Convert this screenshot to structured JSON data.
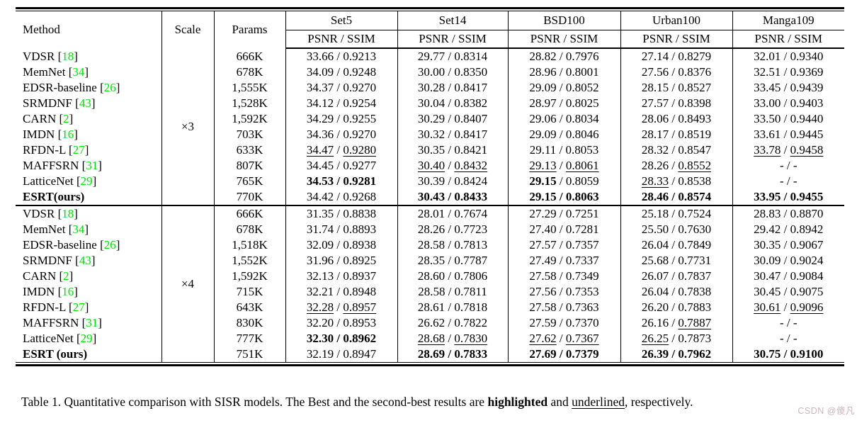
{
  "table": {
    "header": {
      "method": "Method",
      "scale": "Scale",
      "params": "Params",
      "datasets": [
        "Set5",
        "Set14",
        "BSD100",
        "Urban100",
        "Manga109"
      ],
      "subheader": "PSNR / SSIM"
    },
    "accent_green": "#00E400",
    "groups": [
      {
        "scale": "×3",
        "rows": [
          {
            "method": "VDSR",
            "cite": "18",
            "bold": false,
            "params": "666K",
            "cells": [
              [
                "33.66",
                "n",
                "0.9213",
                "n"
              ],
              [
                "29.77",
                "n",
                "0.8314",
                "n"
              ],
              [
                "28.82",
                "n",
                "0.7976",
                "n"
              ],
              [
                "27.14",
                "n",
                "0.8279",
                "n"
              ],
              [
                "32.01",
                "n",
                "0.9340",
                "n"
              ]
            ]
          },
          {
            "method": "MemNet",
            "cite": "34",
            "bold": false,
            "params": "678K",
            "cells": [
              [
                "34.09",
                "n",
                "0.9248",
                "n"
              ],
              [
                "30.00",
                "n",
                "0.8350",
                "n"
              ],
              [
                "28.96",
                "n",
                "0.8001",
                "n"
              ],
              [
                "27.56",
                "n",
                "0.8376",
                "n"
              ],
              [
                "32.51",
                "n",
                "0.9369",
                "n"
              ]
            ]
          },
          {
            "method": "EDSR-baseline",
            "cite": "26",
            "bold": false,
            "params": "1,555K",
            "cells": [
              [
                "34.37",
                "n",
                "0.9270",
                "n"
              ],
              [
                "30.28",
                "n",
                "0.8417",
                "n"
              ],
              [
                "29.09",
                "n",
                "0.8052",
                "n"
              ],
              [
                "28.15",
                "n",
                "0.8527",
                "n"
              ],
              [
                "33.45",
                "n",
                "0.9439",
                "n"
              ]
            ]
          },
          {
            "method": "SRMDNF",
            "cite": "43",
            "bold": false,
            "params": "1,528K",
            "cells": [
              [
                "34.12",
                "n",
                "0.9254",
                "n"
              ],
              [
                "30.04",
                "n",
                "0.8382",
                "n"
              ],
              [
                "28.97",
                "n",
                "0.8025",
                "n"
              ],
              [
                "27.57",
                "n",
                "0.8398",
                "n"
              ],
              [
                "33.00",
                "n",
                "0.9403",
                "n"
              ]
            ]
          },
          {
            "method": "CARN",
            "cite": "2",
            "bold": false,
            "params": "1,592K",
            "cells": [
              [
                "34.29",
                "n",
                "0.9255",
                "n"
              ],
              [
                "30.29",
                "n",
                "0.8407",
                "n"
              ],
              [
                "29.06",
                "n",
                "0.8034",
                "n"
              ],
              [
                "28.06",
                "n",
                "0.8493",
                "n"
              ],
              [
                "33.50",
                "n",
                "0.9440",
                "n"
              ]
            ]
          },
          {
            "method": "IMDN",
            "cite": "16",
            "bold": false,
            "params": "703K",
            "cells": [
              [
                "34.36",
                "n",
                "0.9270",
                "n"
              ],
              [
                "30.32",
                "n",
                "0.8417",
                "n"
              ],
              [
                "29.09",
                "n",
                "0.8046",
                "n"
              ],
              [
                "28.17",
                "n",
                "0.8519",
                "n"
              ],
              [
                "33.61",
                "n",
                "0.9445",
                "n"
              ]
            ]
          },
          {
            "method": "RFDN-L",
            "cite": "27",
            "bold": false,
            "params": "633K",
            "cells": [
              [
                "34.47",
                "u",
                "0.9280",
                "u"
              ],
              [
                "30.35",
                "n",
                "0.8421",
                "n"
              ],
              [
                "29.11",
                "n",
                "0.8053",
                "n"
              ],
              [
                "28.32",
                "n",
                "0.8547",
                "n"
              ],
              [
                "33.78",
                "u",
                "0.9458",
                "u"
              ]
            ]
          },
          {
            "method": "MAFFSRN",
            "cite": "31",
            "bold": false,
            "params": "807K",
            "cells": [
              [
                "34.45",
                "n",
                "0.9277",
                "n"
              ],
              [
                "30.40",
                "u",
                "0.8432",
                "u"
              ],
              [
                "29.13",
                "u",
                "0.8061",
                "u"
              ],
              [
                "28.26",
                "n",
                "0.8552",
                "u"
              ],
              [
                "-",
                "n",
                "-",
                "n"
              ]
            ]
          },
          {
            "method": "LatticeNet",
            "cite": "29",
            "bold": false,
            "params": "765K",
            "cells": [
              [
                "34.53",
                "b",
                "0.9281",
                "b"
              ],
              [
                "30.39",
                "n",
                "0.8424",
                "n"
              ],
              [
                "29.15",
                "b",
                "0.8059",
                "n"
              ],
              [
                "28.33",
                "u",
                "0.8538",
                "n"
              ],
              [
                "-",
                "n",
                "-",
                "n"
              ]
            ]
          },
          {
            "method": "ESRT(ours)",
            "cite": null,
            "bold": true,
            "params": "770K",
            "cells": [
              [
                "34.42",
                "n",
                "0.9268",
                "n"
              ],
              [
                "30.43",
                "b",
                "0.8433",
                "b"
              ],
              [
                "29.15",
                "b",
                "0.8063",
                "b"
              ],
              [
                "28.46",
                "b",
                "0.8574",
                "b"
              ],
              [
                "33.95",
                "b",
                "0.9455",
                "b"
              ]
            ]
          }
        ]
      },
      {
        "scale": "×4",
        "rows": [
          {
            "method": "VDSR",
            "cite": "18",
            "bold": false,
            "params": "666K",
            "cells": [
              [
                "31.35",
                "n",
                "0.8838",
                "n"
              ],
              [
                "28.01",
                "n",
                "0.7674",
                "n"
              ],
              [
                "27.29",
                "n",
                "0.7251",
                "n"
              ],
              [
                "25.18",
                "n",
                "0.7524",
                "n"
              ],
              [
                "28.83",
                "n",
                "0.8870",
                "n"
              ]
            ]
          },
          {
            "method": "MemNet",
            "cite": "34",
            "bold": false,
            "params": "678K",
            "cells": [
              [
                "31.74",
                "n",
                "0.8893",
                "n"
              ],
              [
                "28.26",
                "n",
                "0.7723",
                "n"
              ],
              [
                "27.40",
                "n",
                "0.7281",
                "n"
              ],
              [
                "25.50",
                "n",
                "0.7630",
                "n"
              ],
              [
                "29.42",
                "n",
                "0.8942",
                "n"
              ]
            ]
          },
          {
            "method": "EDSR-baseline",
            "cite": "26",
            "bold": false,
            "params": "1,518K",
            "cells": [
              [
                "32.09",
                "n",
                "0.8938",
                "n"
              ],
              [
                "28.58",
                "n",
                "0.7813",
                "n"
              ],
              [
                "27.57",
                "n",
                "0.7357",
                "n"
              ],
              [
                "26.04",
                "n",
                "0.7849",
                "n"
              ],
              [
                "30.35",
                "n",
                "0.9067",
                "n"
              ]
            ]
          },
          {
            "method": "SRMDNF",
            "cite": "43",
            "bold": false,
            "params": "1,552K",
            "cells": [
              [
                "31.96",
                "n",
                "0.8925",
                "n"
              ],
              [
                "28.35",
                "n",
                "0.7787",
                "n"
              ],
              [
                "27.49",
                "n",
                "0.7337",
                "n"
              ],
              [
                "25.68",
                "n",
                "0.7731",
                "n"
              ],
              [
                "30.09",
                "n",
                "0.9024",
                "n"
              ]
            ]
          },
          {
            "method": "CARN",
            "cite": "2",
            "bold": false,
            "params": "1,592K",
            "cells": [
              [
                "32.13",
                "n",
                "0.8937",
                "n"
              ],
              [
                "28.60",
                "n",
                "0.7806",
                "n"
              ],
              [
                "27.58",
                "n",
                "0.7349",
                "n"
              ],
              [
                "26.07",
                "n",
                "0.7837",
                "n"
              ],
              [
                "30.47",
                "n",
                "0.9084",
                "n"
              ]
            ]
          },
          {
            "method": "IMDN",
            "cite": "16",
            "bold": false,
            "params": "715K",
            "cells": [
              [
                "32.21",
                "n",
                "0.8948",
                "n"
              ],
              [
                "28.58",
                "n",
                "0.7811",
                "n"
              ],
              [
                "27.56",
                "n",
                "0.7353",
                "n"
              ],
              [
                "26.04",
                "n",
                "0.7838",
                "n"
              ],
              [
                "30.45",
                "n",
                "0.9075",
                "n"
              ]
            ]
          },
          {
            "method": "RFDN-L",
            "cite": "27",
            "bold": false,
            "params": "643K",
            "cells": [
              [
                "32.28",
                "u",
                "0.8957",
                "u"
              ],
              [
                "28.61",
                "n",
                "0.7818",
                "n"
              ],
              [
                "27.58",
                "n",
                "0.7363",
                "n"
              ],
              [
                "26.20",
                "n",
                "0.7883",
                "n"
              ],
              [
                "30.61",
                "u",
                "0.9096",
                "u"
              ]
            ]
          },
          {
            "method": "MAFFSRN",
            "cite": "31",
            "bold": false,
            "params": "830K",
            "cells": [
              [
                "32.20",
                "n",
                "0.8953",
                "n"
              ],
              [
                "26.62",
                "n",
                "0.7822",
                "n"
              ],
              [
                "27.59",
                "n",
                "0.7370",
                "n"
              ],
              [
                "26.16",
                "n",
                "0.7887",
                "u"
              ],
              [
                "-",
                "n",
                "-",
                "n"
              ]
            ]
          },
          {
            "method": "LatticeNet",
            "cite": "29",
            "bold": false,
            "params": "777K",
            "cells": [
              [
                "32.30",
                "b",
                "0.8962",
                "b"
              ],
              [
                "28.68",
                "u",
                "0.7830",
                "u"
              ],
              [
                "27.62",
                "u",
                "0.7367",
                "u"
              ],
              [
                "26.25",
                "u",
                "0.7873",
                "n"
              ],
              [
                "-",
                "n",
                "-",
                "n"
              ]
            ]
          },
          {
            "method": "ESRT (ours)",
            "cite": null,
            "bold": true,
            "params": "751K",
            "cells": [
              [
                "32.19",
                "n",
                "0.8947",
                "n"
              ],
              [
                "28.69",
                "b",
                "0.7833",
                "b"
              ],
              [
                "27.69",
                "b",
                "0.7379",
                "b"
              ],
              [
                "26.39",
                "b",
                "0.7962",
                "b"
              ],
              [
                "30.75",
                "b",
                "0.9100",
                "b"
              ]
            ]
          }
        ]
      }
    ],
    "caption": {
      "prefix": "Table 1. Quantitative comparison with SISR models. The Best and the second-best results are ",
      "bold_word": "highlighted",
      "mid": " and ",
      "underlined_word": "underlined",
      "suffix": ", respectively."
    },
    "watermark": "CSDN @傻凡"
  }
}
